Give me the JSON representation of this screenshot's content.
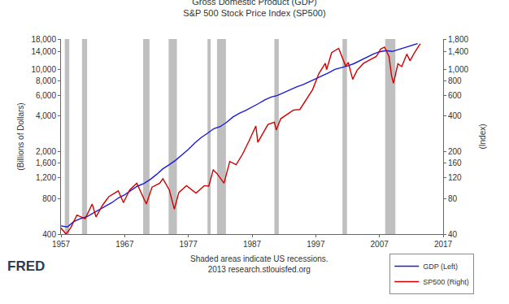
{
  "chart_data": {
    "type": "line",
    "title": [
      "Gross Domestic Product (GDP)",
      "S&P 500 Stock Price Index (SP500)"
    ],
    "y_label": "(Billions of Dollars)",
    "y2_label": "(Index)",
    "note": [
      "Shaded areas indicate US recessions.",
      "2013 research.stlouisfed.org"
    ],
    "logo": "FRED",
    "log": "y",
    "grid": false,
    "legend": "lower right",
    "xlim": [
      1957,
      2017
    ],
    "xticks": [
      1957,
      1967,
      1977,
      1987,
      1997,
      2007,
      2017
    ],
    "ylim": [
      400,
      18000
    ],
    "yticks": [
      400,
      800,
      {
        "value": 1200,
        "label": "1,200"
      },
      {
        "value": 1600,
        "label": "1,600"
      },
      {
        "value": 2000,
        "label": "2,000"
      },
      {
        "value": 4000,
        "label": "4,000"
      },
      {
        "value": 6000,
        "label": "6,000"
      },
      {
        "value": 8000,
        "label": "8,000"
      },
      {
        "value": 10000,
        "label": "10,000"
      },
      {
        "value": 14000,
        "label": "14,000"
      },
      {
        "value": 18000,
        "label": "18,000"
      }
    ],
    "y2lim": [
      40,
      1800
    ],
    "y2ticks": [
      40,
      80,
      120,
      160,
      200,
      400,
      600,
      800,
      {
        "value": 1000,
        "label": "1,000"
      },
      {
        "value": 1400,
        "label": "1,400"
      },
      {
        "value": 1800,
        "label": "1,800"
      }
    ],
    "recessions": [
      [
        1957.6,
        1958.3
      ],
      [
        1960.3,
        1961.1
      ],
      [
        1969.9,
        1970.9
      ],
      [
        1973.9,
        1975.2
      ],
      [
        1980.0,
        1980.5
      ],
      [
        1981.5,
        1982.9
      ],
      [
        1990.5,
        1991.2
      ],
      [
        2001.2,
        2001.9
      ],
      [
        2007.9,
        2009.5
      ]
    ],
    "series": [
      {
        "name": "GDP (Left)",
        "color": "#1a1adb",
        "axis": "y",
        "x": [
          1957,
          1958,
          1959,
          1960,
          1961,
          1962,
          1963,
          1964,
          1965,
          1966,
          1967,
          1968,
          1969,
          1970,
          1971,
          1972,
          1973,
          1974,
          1975,
          1976,
          1977,
          1978,
          1979,
          1980,
          1981,
          1982,
          1983,
          1984,
          1985,
          1986,
          1987,
          1988,
          1989,
          1990,
          1991,
          1992,
          1993,
          1994,
          1995,
          1996,
          1997,
          1998,
          1999,
          2000,
          2001,
          2002,
          2003,
          2004,
          2005,
          2006,
          2007,
          2008,
          2009,
          2010,
          2011,
          2012,
          2013
        ],
        "values": [
          470,
          460,
          510,
          540,
          560,
          600,
          640,
          690,
          740,
          810,
          860,
          940,
          1020,
          1070,
          1160,
          1280,
          1430,
          1550,
          1690,
          1880,
          2090,
          2360,
          2630,
          2860,
          3130,
          3260,
          3540,
          3930,
          4220,
          4460,
          4740,
          5100,
          5480,
          5800,
          5990,
          6340,
          6660,
          7070,
          7400,
          7820,
          8300,
          8750,
          9300,
          9950,
          10290,
          10640,
          11140,
          11870,
          12640,
          13400,
          14030,
          14370,
          14120,
          14660,
          15210,
          15800,
          16480
        ]
      },
      {
        "name": "SP500 (Right)",
        "color": "#d00000",
        "axis": "y2",
        "x": [
          1957,
          1957.8,
          1958.5,
          1959.5,
          1960.8,
          1961.9,
          1962.5,
          1963.5,
          1964.5,
          1966.0,
          1966.8,
          1967.8,
          1968.9,
          1970.4,
          1971.3,
          1972.5,
          1973.0,
          1974.0,
          1974.8,
          1975.5,
          1976.7,
          1978.2,
          1979.5,
          1980.2,
          1980.9,
          1981.5,
          1982.6,
          1983.5,
          1984.5,
          1985.5,
          1986.5,
          1987.6,
          1987.9,
          1989.5,
          1990.5,
          1990.8,
          1991.5,
          1992.5,
          1993.5,
          1994.5,
          1995.5,
          1996.5,
          1997.5,
          1998.5,
          1998.7,
          1999.5,
          2000.6,
          2001.2,
          2001.7,
          2002.1,
          2002.8,
          2003.5,
          2004.5,
          2005.5,
          2006.5,
          2007.2,
          2007.8,
          2008.5,
          2008.9,
          2009.2,
          2009.9,
          2010.5,
          2011.3,
          2011.8,
          2012.5,
          2013.4
        ],
        "values": [
          45,
          40,
          45,
          58,
          54,
          72,
          56,
          70,
          83,
          93,
          74,
          95,
          108,
          72,
          100,
          108,
          118,
          95,
          65,
          90,
          103,
          89,
          103,
          102,
          140,
          130,
          108,
          165,
          155,
          190,
          245,
          330,
          240,
          340,
          355,
          305,
          380,
          415,
          450,
          455,
          550,
          670,
          920,
          1120,
          990,
          1380,
          1500,
          1240,
          1060,
          1140,
          820,
          980,
          1120,
          1200,
          1280,
          1480,
          1540,
          1280,
          880,
          760,
          1110,
          1050,
          1340,
          1180,
          1380,
          1640
        ]
      }
    ]
  }
}
